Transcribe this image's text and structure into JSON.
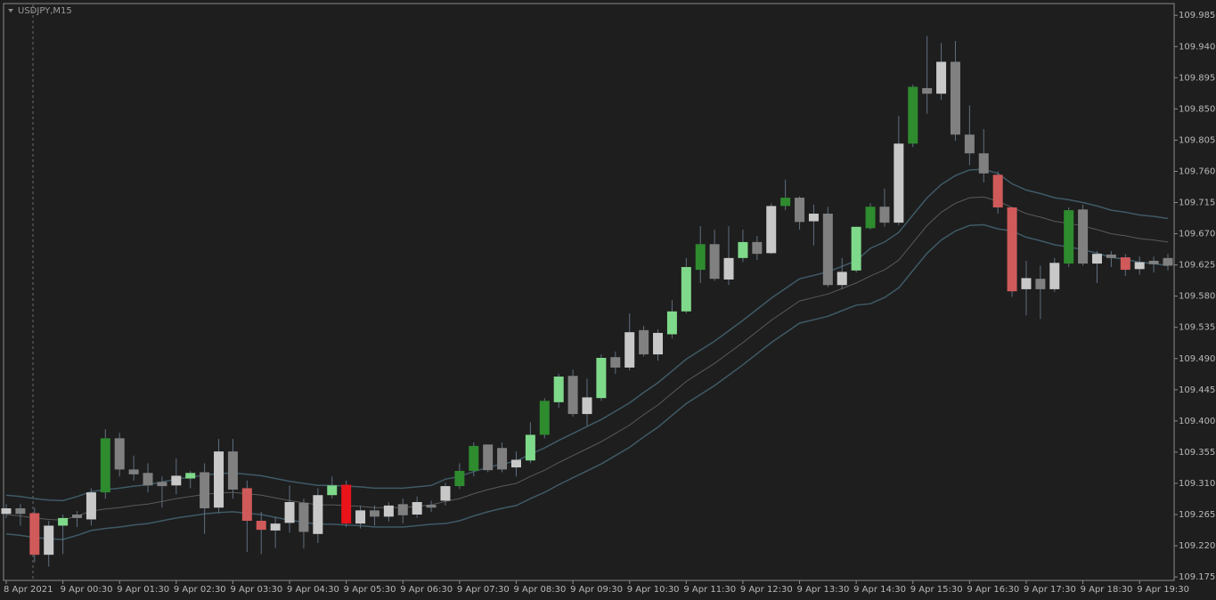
{
  "chart_data": {
    "type": "candlestick",
    "title": "USDJPY,M15",
    "categories": [
      "8 Apr 2021",
      null,
      null,
      null,
      "9 Apr 00:30",
      null,
      null,
      null,
      "9 Apr 01:30",
      null,
      null,
      null,
      "9 Apr 02:30",
      null,
      null,
      null,
      "9 Apr 03:30",
      null,
      null,
      null,
      "9 Apr 04:30",
      null,
      null,
      null,
      "9 Apr 05:30",
      null,
      null,
      null,
      "9 Apr 06:30",
      null,
      null,
      null,
      "9 Apr 07:30",
      null,
      null,
      null,
      "9 Apr 08:30",
      null,
      null,
      null,
      "9 Apr 09:30",
      null,
      null,
      null,
      "9 Apr 10:30",
      null,
      null,
      null,
      "9 Apr 11:30",
      null,
      null,
      null,
      "9 Apr 12:30",
      null,
      null,
      null,
      "9 Apr 13:30",
      null,
      null,
      null,
      "9 Apr 14:30",
      null,
      null,
      null,
      "9 Apr 15:30",
      null,
      null,
      null,
      "9 Apr 16:30",
      null,
      null,
      null,
      "9 Apr 17:30",
      null,
      null,
      null,
      "9 Apr 18:30",
      null,
      null,
      null,
      "9 Apr 19:30",
      null,
      null
    ],
    "open": [
      109.274,
      109.274,
      109.267,
      109.249,
      109.249,
      109.265,
      109.297,
      109.297,
      109.375,
      109.33,
      109.325,
      109.312,
      109.321,
      109.317,
      109.326,
      109.356,
      109.356,
      109.303,
      109.256,
      109.252,
      109.283,
      109.282,
      109.293,
      109.293,
      109.308,
      109.271,
      109.271,
      109.278,
      109.28,
      109.283,
      109.279,
      109.306,
      109.306,
      109.328,
      109.366,
      109.361,
      109.344,
      109.343,
      109.38,
      109.427,
      109.465,
      109.434,
      109.433,
      109.492,
      109.528,
      109.531,
      109.527,
      109.525,
      109.558,
      109.618,
      109.655,
      109.635,
      109.635,
      109.658,
      109.71,
      109.71,
      109.722,
      109.699,
      109.699,
      109.615,
      109.617,
      109.678,
      109.709,
      109.8,
      109.8,
      109.88,
      109.918,
      109.918,
      109.813,
      109.786,
      109.755,
      109.708,
      109.606,
      109.605,
      109.628,
      109.627,
      109.705,
      109.641,
      109.64,
      109.636,
      109.629,
      109.631,
      109.635
    ],
    "high": [
      109.28,
      109.28,
      109.275,
      109.256,
      109.265,
      109.27,
      109.303,
      109.388,
      109.383,
      109.35,
      109.339,
      109.32,
      109.346,
      109.328,
      109.339,
      109.374,
      109.374,
      109.314,
      109.269,
      109.262,
      109.307,
      109.288,
      109.303,
      109.32,
      109.314,
      109.278,
      109.278,
      109.283,
      109.288,
      109.291,
      109.285,
      109.311,
      109.339,
      109.369,
      109.366,
      109.369,
      109.356,
      109.398,
      109.433,
      109.468,
      109.474,
      109.461,
      109.496,
      109.5,
      109.555,
      109.537,
      109.532,
      109.574,
      109.635,
      109.681,
      109.676,
      109.681,
      109.676,
      109.667,
      109.714,
      109.748,
      109.724,
      109.712,
      109.709,
      109.635,
      109.68,
      109.714,
      109.735,
      109.84,
      109.885,
      109.955,
      109.945,
      109.948,
      109.855,
      109.821,
      109.76,
      109.708,
      109.631,
      109.624,
      109.635,
      109.708,
      109.712,
      109.645,
      109.645,
      109.641,
      109.637,
      109.637,
      109.641
    ],
    "low": [
      109.26,
      109.249,
      109.196,
      109.19,
      109.208,
      109.247,
      109.249,
      109.288,
      109.32,
      109.314,
      109.297,
      109.275,
      109.294,
      109.303,
      109.237,
      109.267,
      109.288,
      109.211,
      109.208,
      109.217,
      109.239,
      109.216,
      109.224,
      109.288,
      109.247,
      109.245,
      109.249,
      109.255,
      109.252,
      109.26,
      109.269,
      109.278,
      109.302,
      109.32,
      109.326,
      109.326,
      109.32,
      109.339,
      109.375,
      109.419,
      109.406,
      109.393,
      109.429,
      109.468,
      109.473,
      109.493,
      109.487,
      109.519,
      109.555,
      109.599,
      109.602,
      109.596,
      109.629,
      109.632,
      109.641,
      109.704,
      109.676,
      109.653,
      109.593,
      109.59,
      109.614,
      109.676,
      109.68,
      109.682,
      109.795,
      109.843,
      109.863,
      109.804,
      109.769,
      109.744,
      109.699,
      109.579,
      109.552,
      109.547,
      109.586,
      109.622,
      109.624,
      109.599,
      109.622,
      109.609,
      109.611,
      109.614,
      109.617
    ],
    "close": [
      109.266,
      109.266,
      109.207,
      109.207,
      109.26,
      109.26,
      109.258,
      109.375,
      109.33,
      109.323,
      109.307,
      109.306,
      109.307,
      109.325,
      109.274,
      109.275,
      109.301,
      109.256,
      109.243,
      109.242,
      109.253,
      109.24,
      109.237,
      109.307,
      109.252,
      109.252,
      109.262,
      109.262,
      109.264,
      109.265,
      109.275,
      109.285,
      109.328,
      109.364,
      109.329,
      109.33,
      109.333,
      109.38,
      109.429,
      109.464,
      109.41,
      109.41,
      109.491,
      109.477,
      109.477,
      109.496,
      109.496,
      109.558,
      109.622,
      109.655,
      109.605,
      109.604,
      109.658,
      109.641,
      109.642,
      109.722,
      109.687,
      109.688,
      109.596,
      109.596,
      109.68,
      109.709,
      109.686,
      109.686,
      109.882,
      109.872,
      109.872,
      109.813,
      109.786,
      109.757,
      109.708,
      109.587,
      109.59,
      109.59,
      109.59,
      109.704,
      109.627,
      109.627,
      109.635,
      109.618,
      109.619,
      109.626,
      109.624
    ],
    "colors": [
      "#c8c8c8",
      "#808080",
      "#d05a5a",
      "#c8c8c8",
      "#7fd98a",
      "#808080",
      "#c8c8c8",
      "#2e8b2e",
      "#808080",
      "#808080",
      "#808080",
      "#808080",
      "#c8c8c8",
      "#7fd98a",
      "#808080",
      "#c8c8c8",
      "#808080",
      "#d05a5a",
      "#d05a5a",
      "#c8c8c8",
      "#c8c8c8",
      "#808080",
      "#c8c8c8",
      "#7fd98a",
      "#e8141a",
      "#c8c8c8",
      "#808080",
      "#c8c8c8",
      "#808080",
      "#c8c8c8",
      "#808080",
      "#c8c8c8",
      "#2e8b2e",
      "#2e8b2e",
      "#808080",
      "#808080",
      "#c8c8c8",
      "#7fd98a",
      "#2e8b2e",
      "#7fd98a",
      "#808080",
      "#c8c8c8",
      "#7fd98a",
      "#808080",
      "#c8c8c8",
      "#808080",
      "#c8c8c8",
      "#7fd98a",
      "#7fd98a",
      "#2e8b2e",
      "#808080",
      "#c8c8c8",
      "#7fd98a",
      "#808080",
      "#c8c8c8",
      "#2e8b2e",
      "#808080",
      "#c8c8c8",
      "#808080",
      "#c8c8c8",
      "#7fd98a",
      "#2e8b2e",
      "#808080",
      "#c8c8c8",
      "#2e8b2e",
      "#808080",
      "#c8c8c8",
      "#808080",
      "#808080",
      "#808080",
      "#d05a5a",
      "#d05a5a",
      "#c8c8c8",
      "#808080",
      "#c8c8c8",
      "#2e8b2e",
      "#808080",
      "#c8c8c8",
      "#808080",
      "#d05a5a",
      "#c8c8c8",
      "#808080",
      "#808080"
    ],
    "upper_band": [
      109.293,
      109.291,
      109.288,
      109.286,
      109.285,
      109.291,
      109.298,
      109.301,
      109.303,
      109.306,
      109.308,
      109.312,
      109.316,
      109.319,
      109.322,
      109.324,
      109.325,
      109.323,
      109.321,
      109.317,
      109.313,
      109.31,
      109.307,
      109.307,
      109.306,
      109.305,
      109.303,
      109.303,
      109.303,
      109.305,
      109.307,
      109.316,
      109.32,
      109.327,
      109.333,
      109.338,
      109.342,
      109.352,
      109.361,
      109.372,
      109.382,
      109.392,
      109.402,
      109.414,
      109.426,
      109.441,
      109.455,
      109.472,
      109.489,
      109.502,
      109.515,
      109.53,
      109.545,
      109.561,
      109.577,
      109.591,
      109.605,
      109.61,
      109.615,
      109.623,
      109.631,
      109.649,
      109.658,
      109.672,
      109.697,
      109.722,
      109.741,
      109.754,
      109.762,
      109.763,
      109.757,
      109.742,
      109.733,
      109.728,
      109.722,
      109.719,
      109.715,
      109.71,
      109.704,
      109.701,
      109.697,
      109.695,
      109.692
    ],
    "middle_band": [
      109.265,
      109.263,
      109.26,
      109.258,
      109.257,
      109.263,
      109.27,
      109.273,
      109.275,
      109.278,
      109.28,
      109.284,
      109.288,
      109.291,
      109.294,
      109.296,
      109.297,
      109.295,
      109.293,
      109.289,
      109.285,
      109.282,
      109.279,
      109.279,
      109.278,
      109.277,
      109.275,
      109.275,
      109.275,
      109.277,
      109.279,
      109.284,
      109.288,
      109.295,
      109.301,
      109.306,
      109.31,
      109.32,
      109.329,
      109.34,
      109.35,
      109.36,
      109.37,
      109.382,
      109.394,
      109.409,
      109.423,
      109.44,
      109.457,
      109.47,
      109.483,
      109.498,
      109.513,
      109.529,
      109.545,
      109.559,
      109.573,
      109.578,
      109.583,
      109.591,
      109.599,
      109.609,
      109.618,
      109.632,
      109.657,
      109.682,
      109.701,
      109.714,
      109.722,
      109.723,
      109.717,
      109.708,
      109.699,
      109.694,
      109.688,
      109.685,
      109.681,
      109.676,
      109.67,
      109.667,
      109.663,
      109.661,
      109.658
    ],
    "lower_band": [
      109.237,
      109.235,
      109.232,
      109.23,
      109.229,
      109.235,
      109.242,
      109.245,
      109.247,
      109.25,
      109.252,
      109.256,
      109.26,
      109.263,
      109.266,
      109.268,
      109.269,
      109.267,
      109.265,
      109.261,
      109.257,
      109.254,
      109.251,
      109.251,
      109.25,
      109.249,
      109.247,
      109.247,
      109.247,
      109.249,
      109.251,
      109.252,
      109.256,
      109.263,
      109.269,
      109.274,
      109.278,
      109.288,
      109.297,
      109.308,
      109.318,
      109.328,
      109.338,
      109.35,
      109.362,
      109.377,
      109.391,
      109.408,
      109.425,
      109.438,
      109.451,
      109.466,
      109.481,
      109.497,
      109.513,
      109.527,
      109.541,
      109.546,
      109.551,
      109.559,
      109.567,
      109.569,
      109.578,
      109.592,
      109.617,
      109.642,
      109.661,
      109.674,
      109.682,
      109.683,
      109.677,
      109.674,
      109.665,
      109.66,
      109.654,
      109.651,
      109.647,
      109.642,
      109.636,
      109.633,
      109.629,
      109.627,
      109.624
    ],
    "band_color": "#3f5a66",
    "middle_color": "#5a5a5a",
    "wick_color": "#5f7080",
    "ylim": [
      109.17,
      110.002
    ],
    "yticks": [
      109.985,
      {
        "value": 109.94,
        "label": "109.940"
      },
      109.895,
      {
        "value": 109.85,
        "label": "109.850"
      },
      109.805,
      {
        "value": 109.76,
        "label": "109.760"
      },
      109.715,
      {
        "value": 109.67,
        "label": "109.670"
      },
      109.625,
      {
        "value": 109.58,
        "label": "109.580"
      },
      109.535,
      {
        "value": 109.49,
        "label": "109.490"
      },
      109.445,
      {
        "value": 109.4,
        "label": "109.400"
      },
      109.355,
      {
        "value": 109.31,
        "label": "109.310"
      },
      109.265,
      {
        "value": 109.22,
        "label": "109.220"
      },
      109.175
    ],
    "grid": false
  }
}
